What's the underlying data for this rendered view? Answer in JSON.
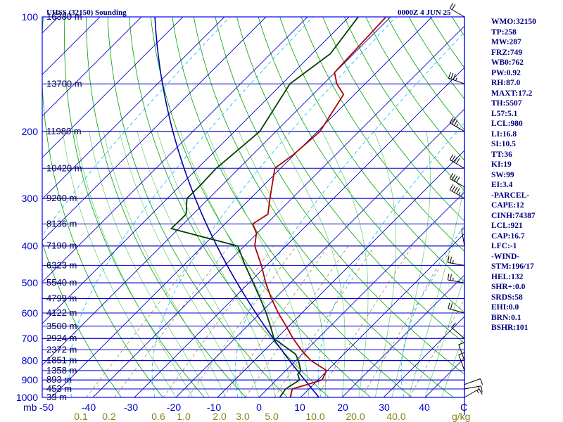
{
  "header": {
    "station": "UHSS (32150) Sounding",
    "time": "0000Z  4 JUN 25"
  },
  "units": {
    "pressure": "mb",
    "temperature": "C",
    "mixing_ratio": "g/kg"
  },
  "colors": {
    "frame": "#0000ff",
    "isobar": "#0000cc",
    "isotherm": "#0000cc",
    "dry_adiabat": "#00a000",
    "moist_adiabat": "#66cc66",
    "mixing_ratio": "#8b7d3a",
    "wet_bulb": "#00bbff",
    "parcel": "#0000aa",
    "temperature": "#b00000",
    "dewpoint": "#004000",
    "wind_barb": "#000000"
  },
  "side_panel": [
    "WMO:32150",
    "TP:258",
    "MW:287",
    "FRZ:749",
    "WB0:762",
    "PW:0.92",
    "RH:87.0",
    "MAXT:17.2",
    "TH:5507",
    "L57:5.1",
    "LCL:980",
    "LI:16.8",
    "SI:10.5",
    "TT:36",
    "KI:19",
    "SW:99",
    "EI:3.4",
    "-PARCEL-",
    "CAPE:12",
    "CINH:74387",
    "LCL:921",
    "CAP:16.7",
    "LFC:-1",
    "-WIND-",
    "STM:196/17",
    "HEL:132",
    "SHR+:0.0",
    "SRDS:58",
    "EHI:0.0",
    "BRN:0.1",
    "BSHR:101"
  ],
  "chart_data": {
    "type": "skew-t log-p sounding",
    "pressure_axis": {
      "label": "mb",
      "ticks": [
        100,
        200,
        300,
        400,
        500,
        600,
        700,
        800,
        900,
        1000
      ],
      "range": [
        1000,
        100
      ],
      "scale": "log"
    },
    "temperature_axis": {
      "label": "C",
      "ticks": [
        -50,
        -40,
        -30,
        -20,
        -10,
        0,
        10,
        20,
        30,
        40
      ]
    },
    "mixing_ratio_axis": {
      "label": "g/kg",
      "ticks": [
        "0.1",
        "0.2",
        "0.6",
        "1.0",
        "2.0",
        "3.0",
        "5.0",
        "10.0",
        "20.0",
        "40.0"
      ]
    },
    "height_labels": [
      {
        "p": 100,
        "label": "16380 m"
      },
      {
        "p": 150,
        "label": "13700 m"
      },
      {
        "p": 200,
        "label": "11980 m"
      },
      {
        "p": 250,
        "label": "10420 m"
      },
      {
        "p": 300,
        "label": "9200 m"
      },
      {
        "p": 350,
        "label": "8136 m"
      },
      {
        "p": 400,
        "label": "7190 m"
      },
      {
        "p": 450,
        "label": "6323 m"
      },
      {
        "p": 500,
        "label": "5540 m"
      },
      {
        "p": 550,
        "label": "4799 m"
      },
      {
        "p": 600,
        "label": "4122 m"
      },
      {
        "p": 650,
        "label": "3500 m"
      },
      {
        "p": 700,
        "label": "2924 m"
      },
      {
        "p": 750,
        "label": "2372 m"
      },
      {
        "p": 800,
        "label": "1851 m"
      },
      {
        "p": 850,
        "label": "1358 m"
      },
      {
        "p": 900,
        "label": "893 m"
      },
      {
        "p": 950,
        "label": "453 m"
      },
      {
        "p": 1000,
        "label": "33 m"
      }
    ],
    "temperature_profile": [
      {
        "p": 1000,
        "t": 7.5
      },
      {
        "p": 950,
        "t": 6.0
      },
      {
        "p": 925,
        "t": 8.5
      },
      {
        "p": 900,
        "t": 11.0
      },
      {
        "p": 850,
        "t": 9.8
      },
      {
        "p": 800,
        "t": 3.6
      },
      {
        "p": 750,
        "t": -1.3
      },
      {
        "p": 700,
        "t": -6.0
      },
      {
        "p": 650,
        "t": -10.6
      },
      {
        "p": 600,
        "t": -15.7
      },
      {
        "p": 550,
        "t": -20.8
      },
      {
        "p": 500,
        "t": -26.0
      },
      {
        "p": 450,
        "t": -31.2
      },
      {
        "p": 400,
        "t": -37.5
      },
      {
        "p": 370,
        "t": -40.2
      },
      {
        "p": 350,
        "t": -43.3
      },
      {
        "p": 330,
        "t": -42.0
      },
      {
        "p": 300,
        "t": -45.3
      },
      {
        "p": 250,
        "t": -51.4
      },
      {
        "p": 230,
        "t": -50.2
      },
      {
        "p": 200,
        "t": -49.4
      },
      {
        "p": 160,
        "t": -52.6
      },
      {
        "p": 150,
        "t": -56.8
      },
      {
        "p": 140,
        "t": -60.1
      },
      {
        "p": 100,
        "t": -61.1
      }
    ],
    "dewpoint_profile": [
      {
        "p": 1000,
        "t": 5.0
      },
      {
        "p": 950,
        "t": 4.4
      },
      {
        "p": 900,
        "t": 5.6
      },
      {
        "p": 870,
        "t": 3.8
      },
      {
        "p": 850,
        "t": 3.6
      },
      {
        "p": 800,
        "t": 0.6
      },
      {
        "p": 770,
        "t": -1.6
      },
      {
        "p": 750,
        "t": -4.1
      },
      {
        "p": 700,
        "t": -10.6
      },
      {
        "p": 650,
        "t": -14.4
      },
      {
        "p": 600,
        "t": -18.6
      },
      {
        "p": 550,
        "t": -23.5
      },
      {
        "p": 500,
        "t": -29.0
      },
      {
        "p": 450,
        "t": -35.1
      },
      {
        "p": 400,
        "t": -41.6
      },
      {
        "p": 360,
        "t": -61.8
      },
      {
        "p": 330,
        "t": -61.7
      },
      {
        "p": 300,
        "t": -65.3
      },
      {
        "p": 280,
        "t": -65.2
      },
      {
        "p": 250,
        "t": -65.5
      },
      {
        "p": 200,
        "t": -63.9
      },
      {
        "p": 150,
        "t": -68.1
      },
      {
        "p": 125,
        "t": -65.6
      },
      {
        "p": 100,
        "t": -67.8
      }
    ],
    "parcel_profile_note": "adiabat drawn as blue curve",
    "wind_barbs": [
      {
        "p": 1000,
        "dir": 60,
        "spd": 15
      },
      {
        "p": 950,
        "dir": 80,
        "spd": 15
      },
      {
        "p": 925,
        "dir": 70,
        "spd": 10
      },
      {
        "p": 850,
        "dir": 340,
        "spd": 10
      },
      {
        "p": 800,
        "dir": 340,
        "spd": 10
      },
      {
        "p": 700,
        "dir": 310,
        "spd": 10
      },
      {
        "p": 600,
        "dir": 285,
        "spd": 20
      },
      {
        "p": 500,
        "dir": 280,
        "spd": 25
      },
      {
        "p": 450,
        "dir": 280,
        "spd": 25
      },
      {
        "p": 400,
        "dir": 350,
        "spd": 5
      },
      {
        "p": 300,
        "dir": 300,
        "spd": 45
      },
      {
        "p": 280,
        "dir": 300,
        "spd": 40
      },
      {
        "p": 250,
        "dir": 300,
        "spd": 40
      },
      {
        "p": 200,
        "dir": 300,
        "spd": 35
      },
      {
        "p": 150,
        "dir": 290,
        "spd": 35
      },
      {
        "p": 100,
        "dir": 300,
        "spd": 20
      }
    ]
  }
}
